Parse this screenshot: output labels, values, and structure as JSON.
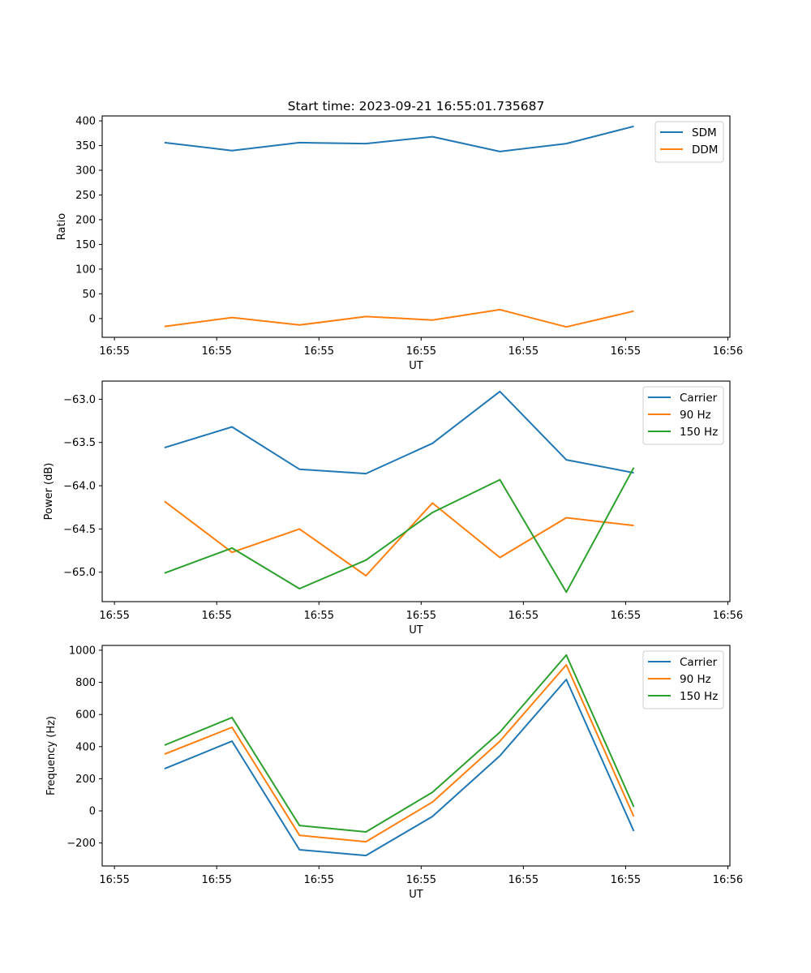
{
  "figure": {
    "title": "Start time: 2023-09-21 16:55:01.735687"
  },
  "chart_data": [
    {
      "type": "line",
      "title": "Start time: 2023-09-21 16:55:01.735687",
      "xlabel": "UT",
      "ylabel": "Ratio",
      "x_tick_labels": [
        "16:55",
        "16:55",
        "16:55",
        "16:55",
        "16:55",
        "16:55",
        "16:56"
      ],
      "x_ticks": [
        0,
        1,
        2,
        3,
        4,
        5,
        6
      ],
      "x": [
        0.49,
        1.15,
        1.81,
        2.46,
        3.11,
        3.77,
        4.42,
        5.08
      ],
      "xlim": [
        -0.12,
        6.02
      ],
      "y_ticks": [
        0,
        50,
        100,
        150,
        200,
        250,
        300,
        350,
        400
      ],
      "ylim": [
        -38,
        410
      ],
      "grid": false,
      "legend_position": "top-right",
      "series": [
        {
          "name": "SDM",
          "color": "#1f77b4",
          "values": [
            356,
            340,
            356,
            354,
            368,
            338,
            354,
            389
          ]
        },
        {
          "name": "DDM",
          "color": "#ff7f0e",
          "values": [
            -16,
            2,
            -13,
            4,
            -3,
            18,
            -17,
            15
          ]
        }
      ]
    },
    {
      "type": "line",
      "title": "",
      "xlabel": "UT",
      "ylabel": "Power (dB)",
      "x_tick_labels": [
        "16:55",
        "16:55",
        "16:55",
        "16:55",
        "16:55",
        "16:55",
        "16:56"
      ],
      "x_ticks": [
        0,
        1,
        2,
        3,
        4,
        5,
        6
      ],
      "x": [
        0.49,
        1.15,
        1.81,
        2.46,
        3.11,
        3.77,
        4.42,
        5.08
      ],
      "xlim": [
        -0.12,
        6.02
      ],
      "y_ticks": [
        -65.0,
        -64.5,
        -64.0,
        -63.5,
        -63.0
      ],
      "y_tick_labels": [
        "−65.0",
        "−64.5",
        "−64.0",
        "−63.5",
        "−63.0"
      ],
      "ylim": [
        -65.34,
        -62.79
      ],
      "grid": false,
      "legend_position": "top-right",
      "series": [
        {
          "name": "Carrier",
          "color": "#1f77b4",
          "values": [
            -63.56,
            -63.32,
            -63.81,
            -63.86,
            -63.51,
            -62.91,
            -63.7,
            -63.85
          ]
        },
        {
          "name": "90 Hz",
          "color": "#ff7f0e",
          "values": [
            -64.18,
            -64.77,
            -64.5,
            -65.04,
            -64.2,
            -64.83,
            -64.37,
            -64.46
          ]
        },
        {
          "name": "150 Hz",
          "color": "#2ca02c",
          "values": [
            -65.01,
            -64.72,
            -65.19,
            -64.86,
            -64.31,
            -63.93,
            -65.23,
            -63.79
          ]
        }
      ]
    },
    {
      "type": "line",
      "title": "",
      "xlabel": "UT",
      "ylabel": "Frequency (Hz)",
      "x_tick_labels": [
        "16:55",
        "16:55",
        "16:55",
        "16:55",
        "16:55",
        "16:55",
        "16:56"
      ],
      "x_ticks": [
        0,
        1,
        2,
        3,
        4,
        5,
        6
      ],
      "x": [
        0.49,
        1.15,
        1.81,
        2.46,
        3.11,
        3.77,
        4.42,
        5.08
      ],
      "xlim": [
        -0.12,
        6.02
      ],
      "y_ticks": [
        -200,
        0,
        200,
        400,
        600,
        800,
        1000
      ],
      "y_tick_labels": [
        "−200",
        "0",
        "200",
        "400",
        "600",
        "800",
        "1000"
      ],
      "ylim": [
        -343,
        1030
      ],
      "grid": false,
      "legend_position": "top-right",
      "series": [
        {
          "name": "Carrier",
          "color": "#1f77b4",
          "values": [
            262,
            434,
            -242,
            -278,
            -35,
            343,
            818,
            -126
          ]
        },
        {
          "name": "90 Hz",
          "color": "#ff7f0e",
          "values": [
            353,
            520,
            -152,
            -192,
            55,
            434,
            909,
            -35
          ]
        },
        {
          "name": "150 Hz",
          "color": "#2ca02c",
          "values": [
            409,
            581,
            -91,
            -131,
            116,
            490,
            970,
            25
          ]
        }
      ]
    }
  ]
}
